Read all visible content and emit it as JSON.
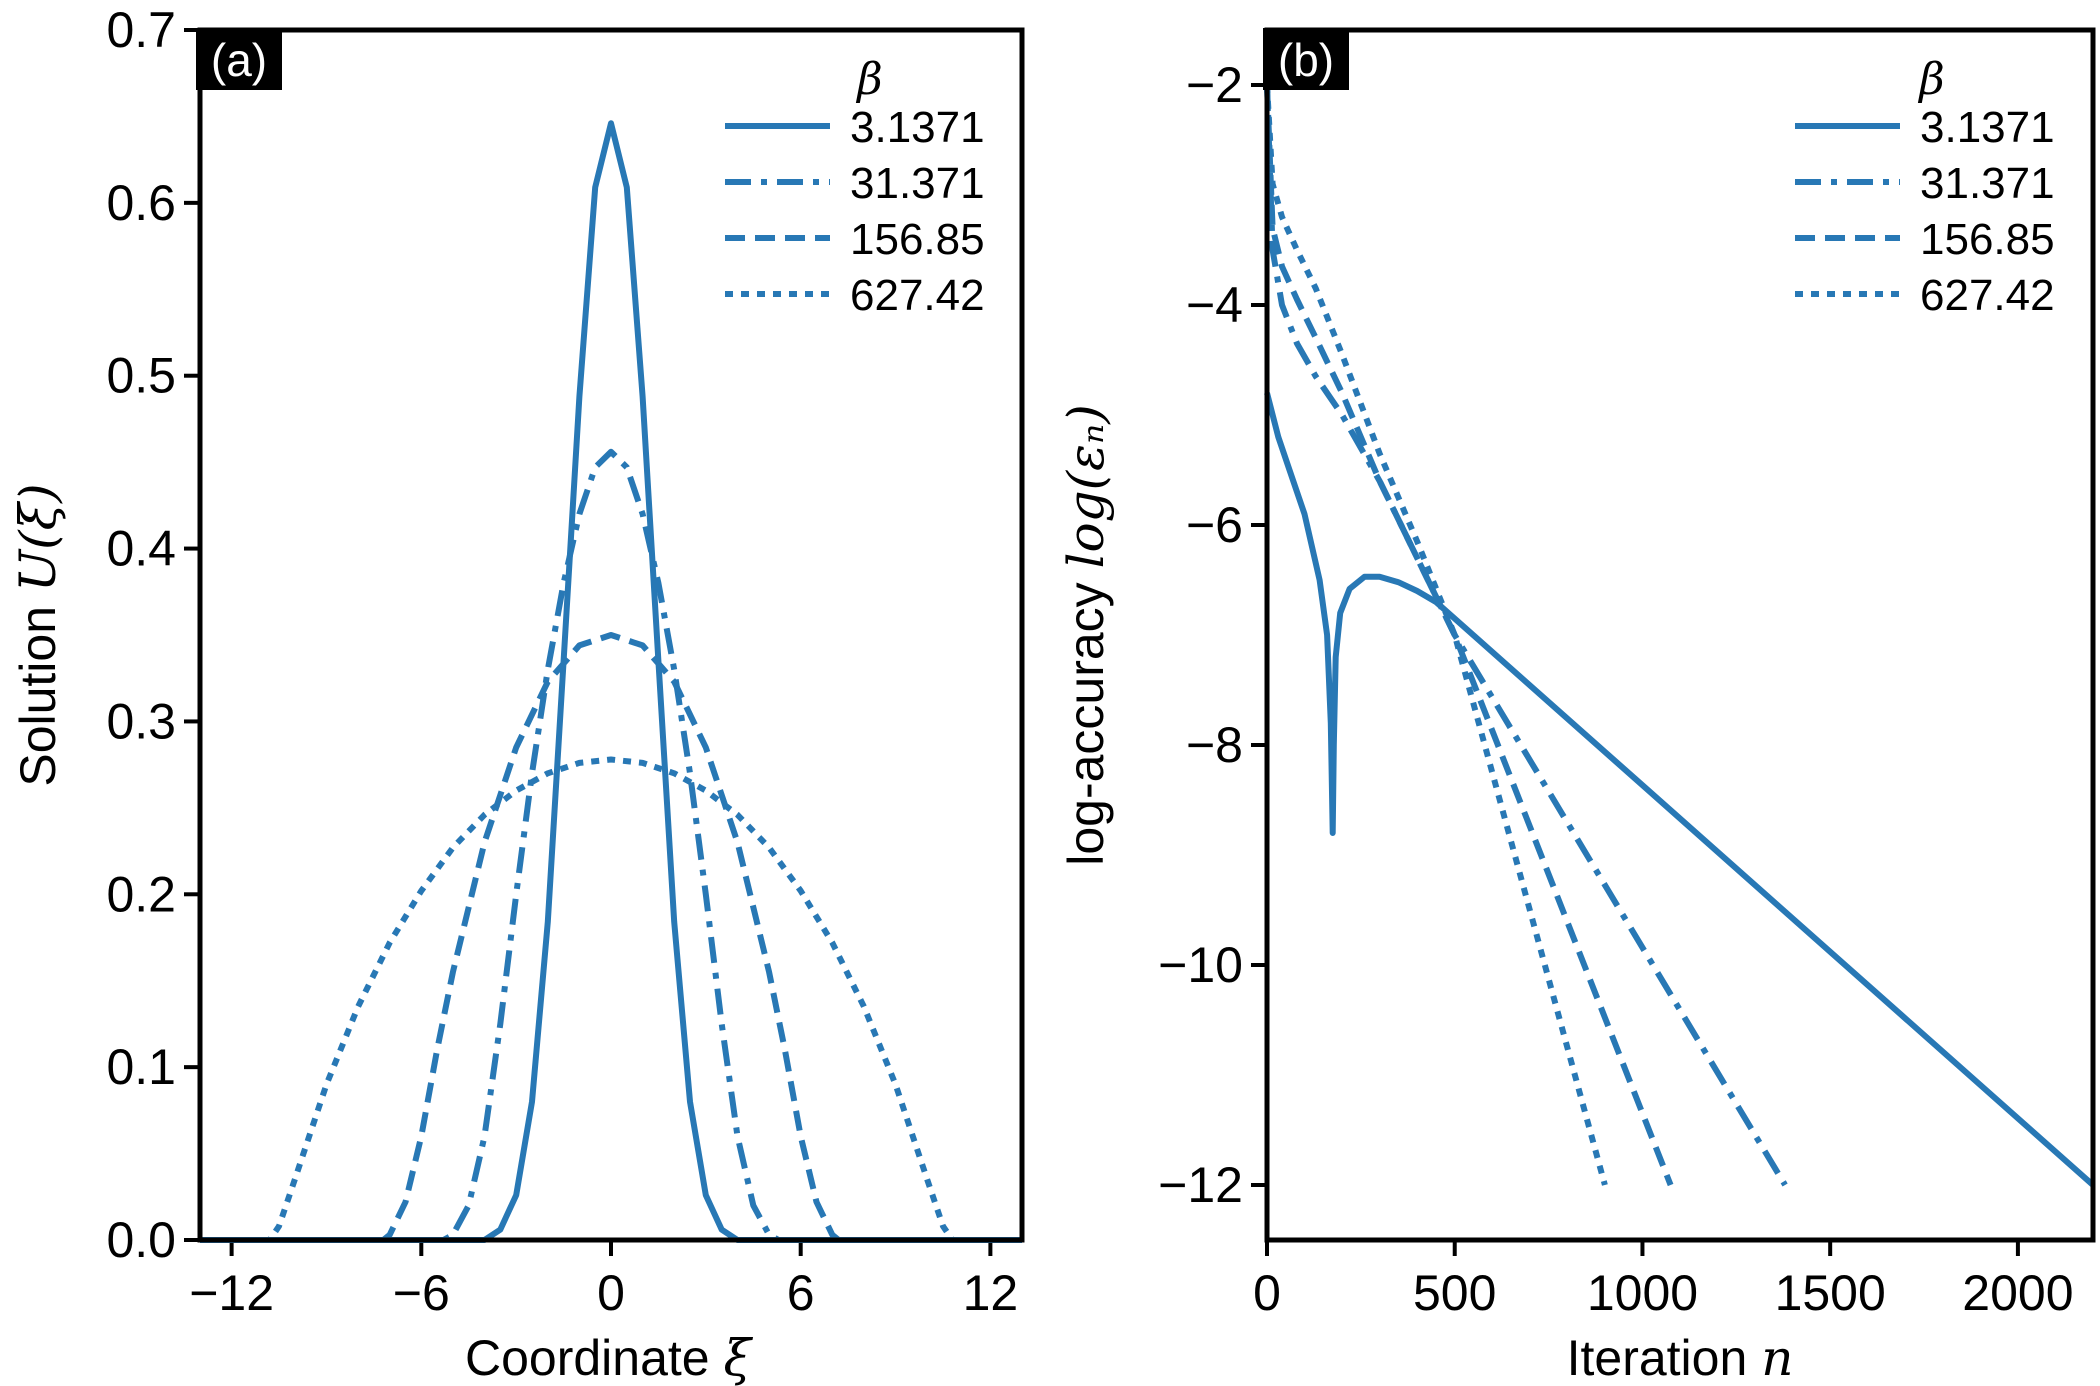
{
  "chart_data": [
    {
      "panel": "(a)",
      "type": "line",
      "xlabel_text": "Coordinate",
      "xlabel_symbol": "ξ",
      "ylabel_text": "Solution",
      "ylabel_symbol": "U(ξ)",
      "xlim": [
        -13,
        13
      ],
      "ylim": [
        0.0,
        0.7
      ],
      "xticks": [
        -12,
        -6,
        0,
        6,
        12
      ],
      "xtick_labels": [
        "−12",
        "−6",
        "0",
        "6",
        "12"
      ],
      "yticks": [
        0.0,
        0.1,
        0.2,
        0.3,
        0.4,
        0.5,
        0.6,
        0.7
      ],
      "ytick_labels": [
        "0.0",
        "0.1",
        "0.2",
        "0.3",
        "0.4",
        "0.5",
        "0.6",
        "0.7"
      ],
      "legend_title": "β",
      "legend_position": "top-right",
      "series": [
        {
          "name": "3.1371",
          "style": "solid",
          "x": [
            -13,
            -4.0,
            -3.5,
            -3.0,
            -2.5,
            -2.0,
            -1.5,
            -1.0,
            -0.5,
            0,
            0.5,
            1.0,
            1.5,
            2.0,
            2.5,
            3.0,
            3.5,
            4.0,
            13
          ],
          "y": [
            0,
            0,
            0.006,
            0.026,
            0.08,
            0.184,
            0.335,
            0.488,
            0.609,
            0.646,
            0.609,
            0.488,
            0.335,
            0.184,
            0.08,
            0.026,
            0.006,
            0,
            0
          ]
        },
        {
          "name": "31.371",
          "style": "dashdot",
          "x": [
            -13,
            -5.3,
            -5.0,
            -4.5,
            -4.0,
            -3.5,
            -3.0,
            -2.5,
            -2.0,
            -1.5,
            -1.0,
            -0.5,
            0,
            0.5,
            1.0,
            1.5,
            2.0,
            2.5,
            3.0,
            3.5,
            4.0,
            4.5,
            5.0,
            5.3,
            13
          ],
          "y": [
            0,
            0,
            0.003,
            0.02,
            0.06,
            0.125,
            0.2,
            0.27,
            0.33,
            0.38,
            0.42,
            0.447,
            0.456,
            0.447,
            0.42,
            0.38,
            0.33,
            0.27,
            0.2,
            0.125,
            0.06,
            0.02,
            0.003,
            0,
            0
          ]
        },
        {
          "name": "156.85",
          "style": "dashed",
          "x": [
            -13,
            -7.2,
            -7.0,
            -6.5,
            -6.0,
            -5.5,
            -5.0,
            -4.0,
            -3.0,
            -2.0,
            -1.0,
            0,
            1.0,
            2.0,
            3.0,
            4.0,
            5.0,
            5.5,
            6.0,
            6.5,
            7.0,
            7.2,
            13
          ],
          "y": [
            0,
            0,
            0.003,
            0.022,
            0.06,
            0.11,
            0.155,
            0.23,
            0.285,
            0.323,
            0.344,
            0.35,
            0.344,
            0.323,
            0.285,
            0.23,
            0.155,
            0.11,
            0.06,
            0.022,
            0.003,
            0,
            0
          ]
        },
        {
          "name": "627.42",
          "style": "dotted",
          "x": [
            -13,
            -10.8,
            -10.5,
            -10.0,
            -9.0,
            -8.0,
            -7.0,
            -6.0,
            -5.0,
            -4.0,
            -3.0,
            -2.0,
            -1.0,
            0,
            1.0,
            2.0,
            3.0,
            4.0,
            5.0,
            6.0,
            7.0,
            8.0,
            9.0,
            10.0,
            10.5,
            10.8,
            13
          ],
          "y": [
            0,
            0,
            0.008,
            0.035,
            0.09,
            0.135,
            0.172,
            0.202,
            0.227,
            0.246,
            0.26,
            0.27,
            0.276,
            0.278,
            0.276,
            0.27,
            0.26,
            0.246,
            0.227,
            0.202,
            0.172,
            0.135,
            0.09,
            0.035,
            0.008,
            0,
            0
          ]
        }
      ]
    },
    {
      "panel": "(b)",
      "type": "line",
      "xlabel_text": "Iteration",
      "xlabel_symbol": "n",
      "ylabel_text": "log-accuracy",
      "ylabel_symbol": "log(εₙ)",
      "xlim": [
        0,
        2200
      ],
      "ylim": [
        -12.5,
        -1.5
      ],
      "xticks": [
        0,
        500,
        1000,
        1500,
        2000
      ],
      "xtick_labels": [
        "0",
        "500",
        "1000",
        "1500",
        "2000"
      ],
      "yticks": [
        -2,
        -4,
        -6,
        -8,
        -10,
        -12
      ],
      "ytick_labels": [
        "−2",
        "−4",
        "−6",
        "−8",
        "−10",
        "−12"
      ],
      "legend_title": "β",
      "legend_position": "top-right",
      "series": [
        {
          "name": "3.1371",
          "style": "solid",
          "x": [
            0,
            30,
            60,
            100,
            140,
            160,
            170,
            175,
            178,
            183,
            195,
            220,
            260,
            300,
            350,
            400,
            450,
            2200
          ],
          "y": [
            -4.8,
            -5.2,
            -5.5,
            -5.9,
            -6.5,
            -7.0,
            -7.8,
            -8.8,
            -8.0,
            -7.2,
            -6.8,
            -6.58,
            -6.47,
            -6.47,
            -6.52,
            -6.6,
            -6.7,
            -12.0
          ]
        },
        {
          "name": "31.371",
          "style": "dashdot",
          "x": [
            0,
            15,
            40,
            80,
            130,
            200,
            300,
            400,
            500,
            1380
          ],
          "y": [
            -2.0,
            -3.5,
            -4.0,
            -4.35,
            -4.65,
            -5.0,
            -5.6,
            -6.3,
            -7.0,
            -12.0
          ]
        },
        {
          "name": "156.85",
          "style": "dashed",
          "x": [
            0,
            15,
            40,
            80,
            130,
            200,
            300,
            400,
            500,
            1075
          ],
          "y": [
            -2.0,
            -3.3,
            -3.65,
            -3.95,
            -4.3,
            -4.8,
            -5.6,
            -6.3,
            -7.0,
            -12.0
          ]
        },
        {
          "name": "627.42",
          "style": "dotted",
          "x": [
            0,
            15,
            40,
            80,
            130,
            200,
            300,
            400,
            500,
            900
          ],
          "y": [
            -2.0,
            -2.9,
            -3.2,
            -3.5,
            -3.85,
            -4.45,
            -5.35,
            -6.15,
            -7.0,
            -12.0
          ]
        }
      ]
    }
  ],
  "colors": {
    "line": "#2878b5",
    "axis": "#000000",
    "tag_bg": "#000000",
    "tag_text": "#ffffff"
  }
}
